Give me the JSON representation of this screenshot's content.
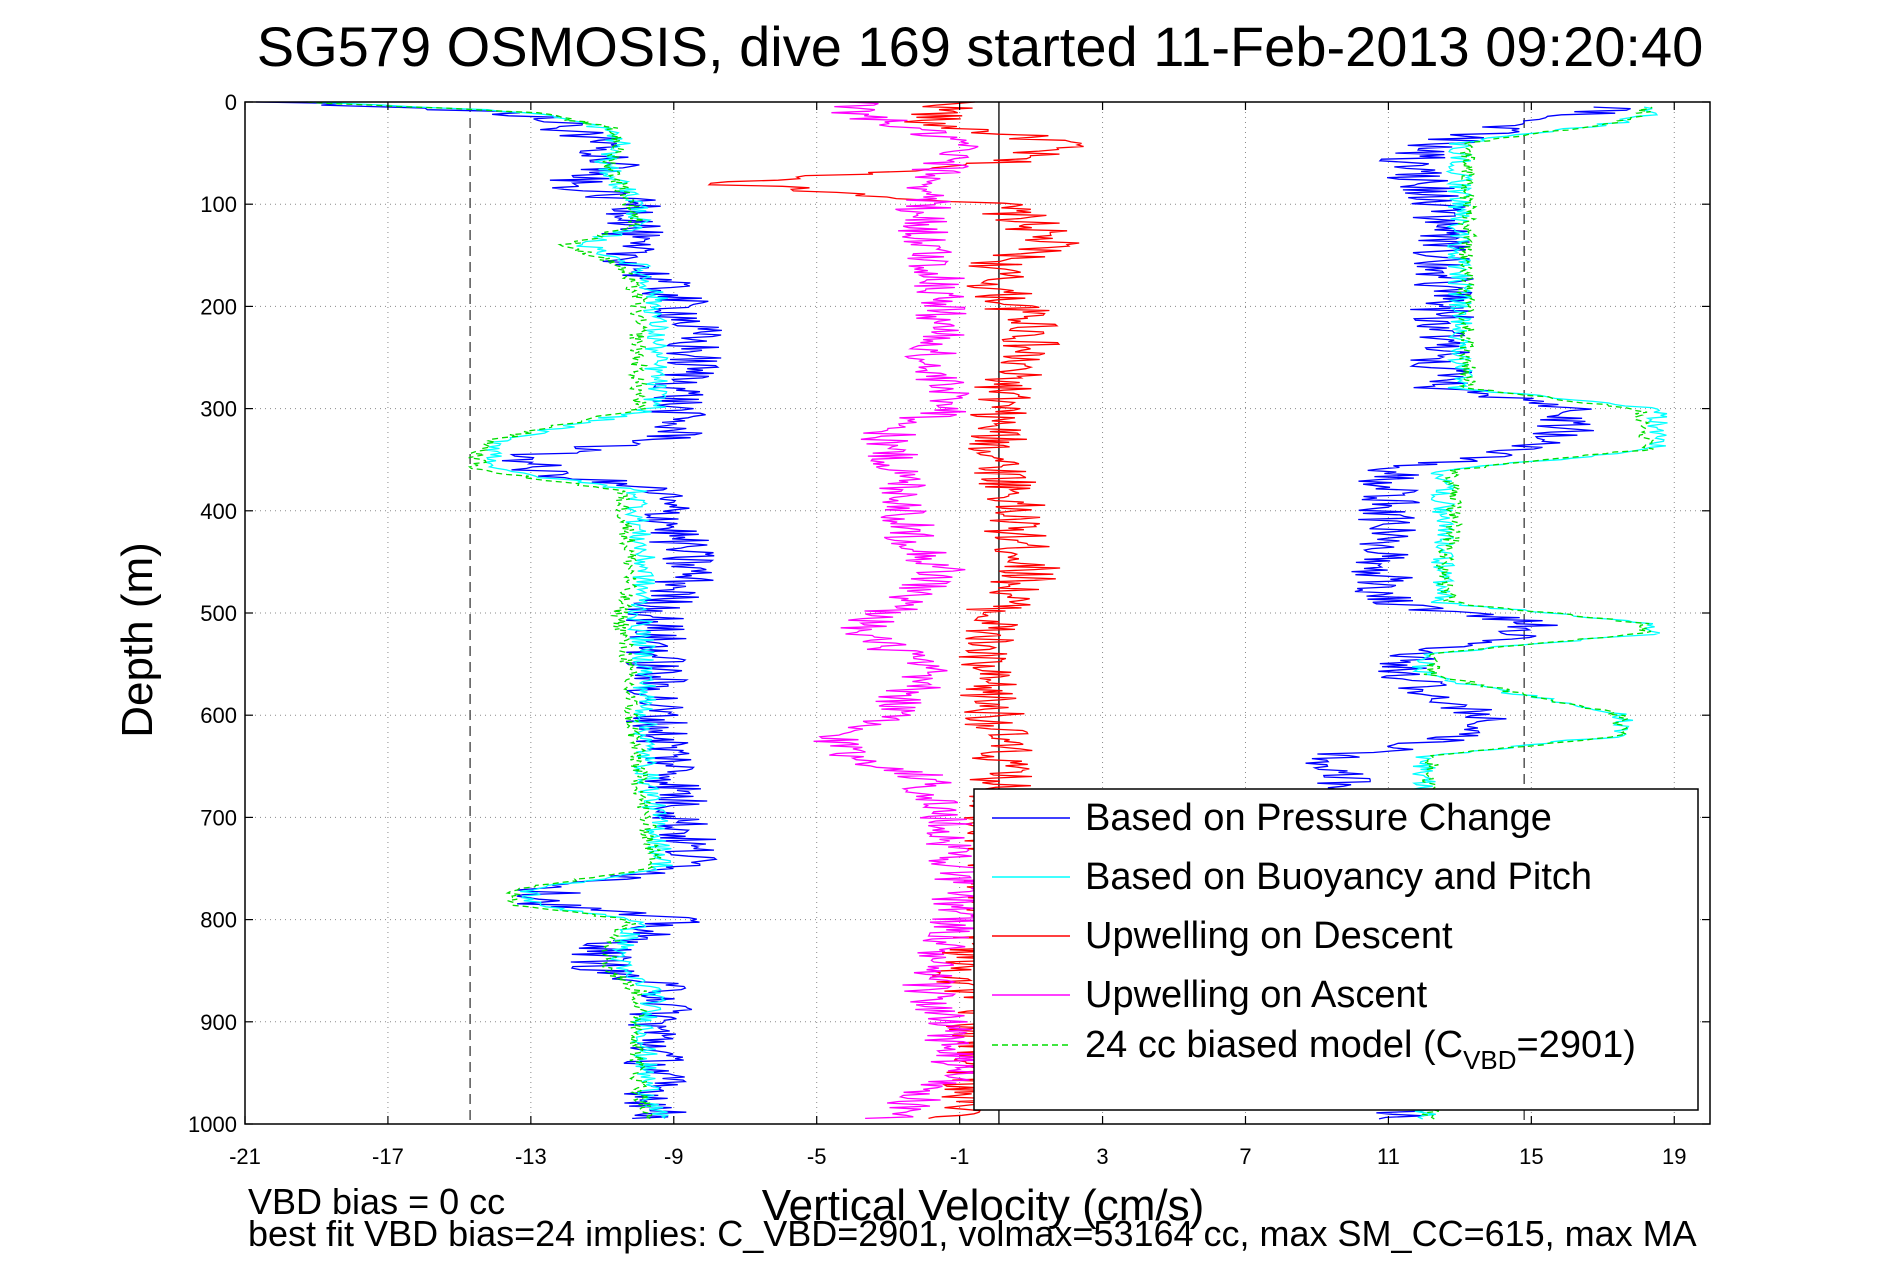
{
  "chart_data": {
    "type": "line",
    "title": "SG579 OSMOSIS, dive 169 started 11-Feb-2013 09:20:40",
    "xlabel": "Vertical Velocity (cm/s)",
    "ylabel": "Depth (m)",
    "xlim": [
      -21,
      20
    ],
    "ylim": [
      0,
      1000
    ],
    "y_reversed": true,
    "x_ticks": [
      "-21",
      "-17",
      "-13",
      "-9",
      "-5",
      "-1",
      "3",
      "7",
      "11",
      "15",
      "19"
    ],
    "y_ticks": [
      "0",
      "100",
      "200",
      "300",
      "400",
      "500",
      "600",
      "700",
      "800",
      "900",
      "1000"
    ],
    "grid": true,
    "reference_lines": {
      "dashed_x": [
        -14.7,
        14.8
      ],
      "solid_x": [
        0.1
      ]
    },
    "legend_position": "bottom-right",
    "legend": {
      "pressure_change": "Based on Pressure Change",
      "buoyancy_pitch": "Based on Buoyancy and Pitch",
      "upwelling_descent": "Upwelling on Descent",
      "upwelling_ascent": "Upwelling on Ascent",
      "biased_model_main": "24 cc biased model (C",
      "biased_model_sub": "VBD",
      "biased_model_end": "=2901)"
    },
    "series": [
      {
        "key": "pressure_change",
        "color": "#0000ff",
        "style": "solid",
        "descent": [
          [
            0,
            -20
          ],
          [
            10,
            -13.5
          ],
          [
            25,
            -12
          ],
          [
            40,
            -11
          ],
          [
            60,
            -10.5
          ],
          [
            80,
            -12
          ],
          [
            100,
            -10
          ],
          [
            120,
            -10
          ],
          [
            140,
            -10.5
          ],
          [
            160,
            -10
          ],
          [
            190,
            -9
          ],
          [
            220,
            -8.5
          ],
          [
            260,
            -8.5
          ],
          [
            300,
            -9
          ],
          [
            330,
            -9
          ],
          [
            345,
            -13
          ],
          [
            360,
            -13
          ],
          [
            380,
            -9.5
          ],
          [
            420,
            -9
          ],
          [
            460,
            -8.5
          ],
          [
            500,
            -9.5
          ],
          [
            550,
            -9.5
          ],
          [
            600,
            -9.5
          ],
          [
            650,
            -9
          ],
          [
            700,
            -8.8
          ],
          [
            750,
            -8.5
          ],
          [
            770,
            -12.5
          ],
          [
            785,
            -12.5
          ],
          [
            800,
            -9
          ],
          [
            830,
            -11
          ],
          [
            850,
            -11
          ],
          [
            870,
            -9
          ],
          [
            900,
            -9.5
          ],
          [
            950,
            -9.5
          ],
          [
            990,
            -9.5
          ]
        ],
        "ascent": [
          [
            990,
            11.5
          ],
          [
            950,
            11.5
          ],
          [
            900,
            11.5
          ],
          [
            850,
            11.5
          ],
          [
            800,
            11.5
          ],
          [
            750,
            11.5
          ],
          [
            700,
            11.5
          ],
          [
            660,
            9.5
          ],
          [
            640,
            9.5
          ],
          [
            620,
            13.5
          ],
          [
            600,
            13.5
          ],
          [
            560,
            11.5
          ],
          [
            540,
            11.5
          ],
          [
            520,
            15
          ],
          [
            510,
            15
          ],
          [
            490,
            11
          ],
          [
            460,
            10.8
          ],
          [
            420,
            11
          ],
          [
            400,
            11
          ],
          [
            380,
            11
          ],
          [
            360,
            11
          ],
          [
            340,
            15
          ],
          [
            320,
            16
          ],
          [
            300,
            16
          ],
          [
            280,
            12.5
          ],
          [
            250,
            12.5
          ],
          [
            200,
            12.5
          ],
          [
            150,
            12.5
          ],
          [
            100,
            12.5
          ],
          [
            60,
            11.5
          ],
          [
            40,
            12.5
          ],
          [
            20,
            15
          ],
          [
            10,
            17
          ]
        ]
      },
      {
        "key": "buoyancy_pitch",
        "color": "#00ffff",
        "style": "solid",
        "descent": [
          [
            0,
            -19
          ],
          [
            10,
            -13
          ],
          [
            25,
            -11
          ],
          [
            40,
            -10.5
          ],
          [
            60,
            -11
          ],
          [
            80,
            -10.5
          ],
          [
            100,
            -10
          ],
          [
            120,
            -10
          ],
          [
            140,
            -11.5
          ],
          [
            160,
            -10
          ],
          [
            190,
            -9.5
          ],
          [
            220,
            -9.5
          ],
          [
            260,
            -9.5
          ],
          [
            300,
            -9.5
          ],
          [
            330,
            -13.8
          ],
          [
            345,
            -14
          ],
          [
            360,
            -14
          ],
          [
            380,
            -10
          ],
          [
            420,
            -10
          ],
          [
            460,
            -9.8
          ],
          [
            500,
            -10
          ],
          [
            550,
            -9.8
          ],
          [
            600,
            -9.8
          ],
          [
            650,
            -9.8
          ],
          [
            700,
            -9.5
          ],
          [
            750,
            -9.3
          ],
          [
            770,
            -13
          ],
          [
            785,
            -13
          ],
          [
            800,
            -10
          ],
          [
            830,
            -10.5
          ],
          [
            850,
            -10.5
          ],
          [
            870,
            -9.5
          ],
          [
            900,
            -9.8
          ],
          [
            950,
            -9.8
          ],
          [
            990,
            -9.5
          ]
        ],
        "ascent": [
          [
            990,
            12
          ],
          [
            950,
            12
          ],
          [
            900,
            12
          ],
          [
            850,
            12
          ],
          [
            800,
            12
          ],
          [
            750,
            12
          ],
          [
            700,
            12
          ],
          [
            660,
            12
          ],
          [
            640,
            12
          ],
          [
            620,
            17.5
          ],
          [
            600,
            17.5
          ],
          [
            560,
            12
          ],
          [
            540,
            12
          ],
          [
            520,
            18.5
          ],
          [
            510,
            18.5
          ],
          [
            490,
            12.5
          ],
          [
            460,
            12.5
          ],
          [
            420,
            12.5
          ],
          [
            400,
            12.5
          ],
          [
            380,
            12.5
          ],
          [
            360,
            12.5
          ],
          [
            340,
            18.5
          ],
          [
            320,
            18.5
          ],
          [
            300,
            18.5
          ],
          [
            280,
            13
          ],
          [
            250,
            13
          ],
          [
            200,
            13
          ],
          [
            150,
            13
          ],
          [
            100,
            13
          ],
          [
            60,
            13
          ],
          [
            40,
            13
          ],
          [
            20,
            17.5
          ],
          [
            10,
            18.5
          ]
        ]
      },
      {
        "key": "upwelling_descent",
        "color": "#ff0000",
        "style": "solid",
        "profile": [
          [
            0,
            -1
          ],
          [
            20,
            -2
          ],
          [
            40,
            2
          ],
          [
            60,
            0
          ],
          [
            80,
            -7.5
          ],
          [
            100,
            0
          ],
          [
            120,
            1
          ],
          [
            140,
            1.5
          ],
          [
            160,
            0
          ],
          [
            180,
            0
          ],
          [
            200,
            0.5
          ],
          [
            220,
            1.2
          ],
          [
            260,
            0.5
          ],
          [
            300,
            0
          ],
          [
            340,
            0
          ],
          [
            380,
            0.5
          ],
          [
            420,
            0.5
          ],
          [
            460,
            1
          ],
          [
            500,
            0
          ],
          [
            550,
            -0.5
          ],
          [
            600,
            0
          ],
          [
            650,
            0.2
          ],
          [
            700,
            0
          ],
          [
            750,
            0
          ],
          [
            800,
            0
          ],
          [
            850,
            -1
          ],
          [
            900,
            -0.5
          ],
          [
            950,
            -0.5
          ],
          [
            990,
            -1
          ]
        ]
      },
      {
        "key": "upwelling_ascent",
        "color": "#ff00ff",
        "style": "solid",
        "profile": [
          [
            990,
            -3
          ],
          [
            950,
            -1
          ],
          [
            900,
            -1.5
          ],
          [
            850,
            -2
          ],
          [
            800,
            -1
          ],
          [
            750,
            -1
          ],
          [
            700,
            -1.5
          ],
          [
            660,
            -2
          ],
          [
            640,
            -4
          ],
          [
            620,
            -4.5
          ],
          [
            600,
            -3
          ],
          [
            560,
            -2
          ],
          [
            540,
            -2.5
          ],
          [
            520,
            -4
          ],
          [
            500,
            -3
          ],
          [
            460,
            -1.5
          ],
          [
            420,
            -2.5
          ],
          [
            380,
            -2.5
          ],
          [
            340,
            -3
          ],
          [
            320,
            -3
          ],
          [
            300,
            -1
          ],
          [
            260,
            -2
          ],
          [
            220,
            -1.5
          ],
          [
            180,
            -1.5
          ],
          [
            140,
            -2
          ],
          [
            100,
            -2
          ],
          [
            60,
            -1.5
          ],
          [
            40,
            -1
          ],
          [
            20,
            -3
          ],
          [
            10,
            -4
          ]
        ]
      },
      {
        "key": "biased_model",
        "color": "#00dd00",
        "style": "dashed",
        "descent": [
          [
            0,
            -19.5
          ],
          [
            10,
            -13
          ],
          [
            25,
            -10.8
          ],
          [
            40,
            -10.5
          ],
          [
            60,
            -10.8
          ],
          [
            80,
            -10.5
          ],
          [
            100,
            -10.2
          ],
          [
            120,
            -10
          ],
          [
            140,
            -12
          ],
          [
            160,
            -10.5
          ],
          [
            190,
            -10
          ],
          [
            220,
            -10
          ],
          [
            260,
            -10
          ],
          [
            300,
            -10
          ],
          [
            330,
            -14
          ],
          [
            345,
            -14.5
          ],
          [
            360,
            -14.5
          ],
          [
            380,
            -10.5
          ],
          [
            420,
            -10.3
          ],
          [
            460,
            -10.2
          ],
          [
            500,
            -10.5
          ],
          [
            550,
            -10.3
          ],
          [
            600,
            -10.2
          ],
          [
            650,
            -10
          ],
          [
            700,
            -9.8
          ],
          [
            750,
            -9.5
          ],
          [
            770,
            -13.5
          ],
          [
            785,
            -13.5
          ],
          [
            800,
            -10.2
          ],
          [
            830,
            -10.8
          ],
          [
            850,
            -10.8
          ],
          [
            870,
            -10
          ],
          [
            900,
            -10
          ],
          [
            950,
            -10
          ],
          [
            990,
            -9.8
          ]
        ],
        "ascent": [
          [
            990,
            12.2
          ],
          [
            950,
            12.2
          ],
          [
            900,
            12.2
          ],
          [
            850,
            12.2
          ],
          [
            800,
            12.2
          ],
          [
            750,
            12.2
          ],
          [
            700,
            12.2
          ],
          [
            660,
            12.2
          ],
          [
            640,
            12.2
          ],
          [
            620,
            17.5
          ],
          [
            600,
            17.5
          ],
          [
            560,
            12.2
          ],
          [
            540,
            12.2
          ],
          [
            520,
            18.2
          ],
          [
            510,
            18.2
          ],
          [
            490,
            12.8
          ],
          [
            460,
            12.5
          ],
          [
            420,
            12.8
          ],
          [
            400,
            12.8
          ],
          [
            380,
            12.8
          ],
          [
            360,
            12.8
          ],
          [
            340,
            18.2
          ],
          [
            320,
            18.2
          ],
          [
            300,
            18
          ],
          [
            280,
            13.2
          ],
          [
            250,
            13.2
          ],
          [
            200,
            13.2
          ],
          [
            150,
            13.2
          ],
          [
            100,
            13.2
          ],
          [
            60,
            13.2
          ],
          [
            40,
            13.2
          ],
          [
            20,
            17.5
          ],
          [
            10,
            18.2
          ]
        ]
      }
    ],
    "footer": {
      "line1": "VBD bias = 0 cc",
      "line2": "best fit VBD bias=24 implies: C_VBD=2901, volmax=53164 cc, max SM_CC=615, max MA"
    }
  }
}
